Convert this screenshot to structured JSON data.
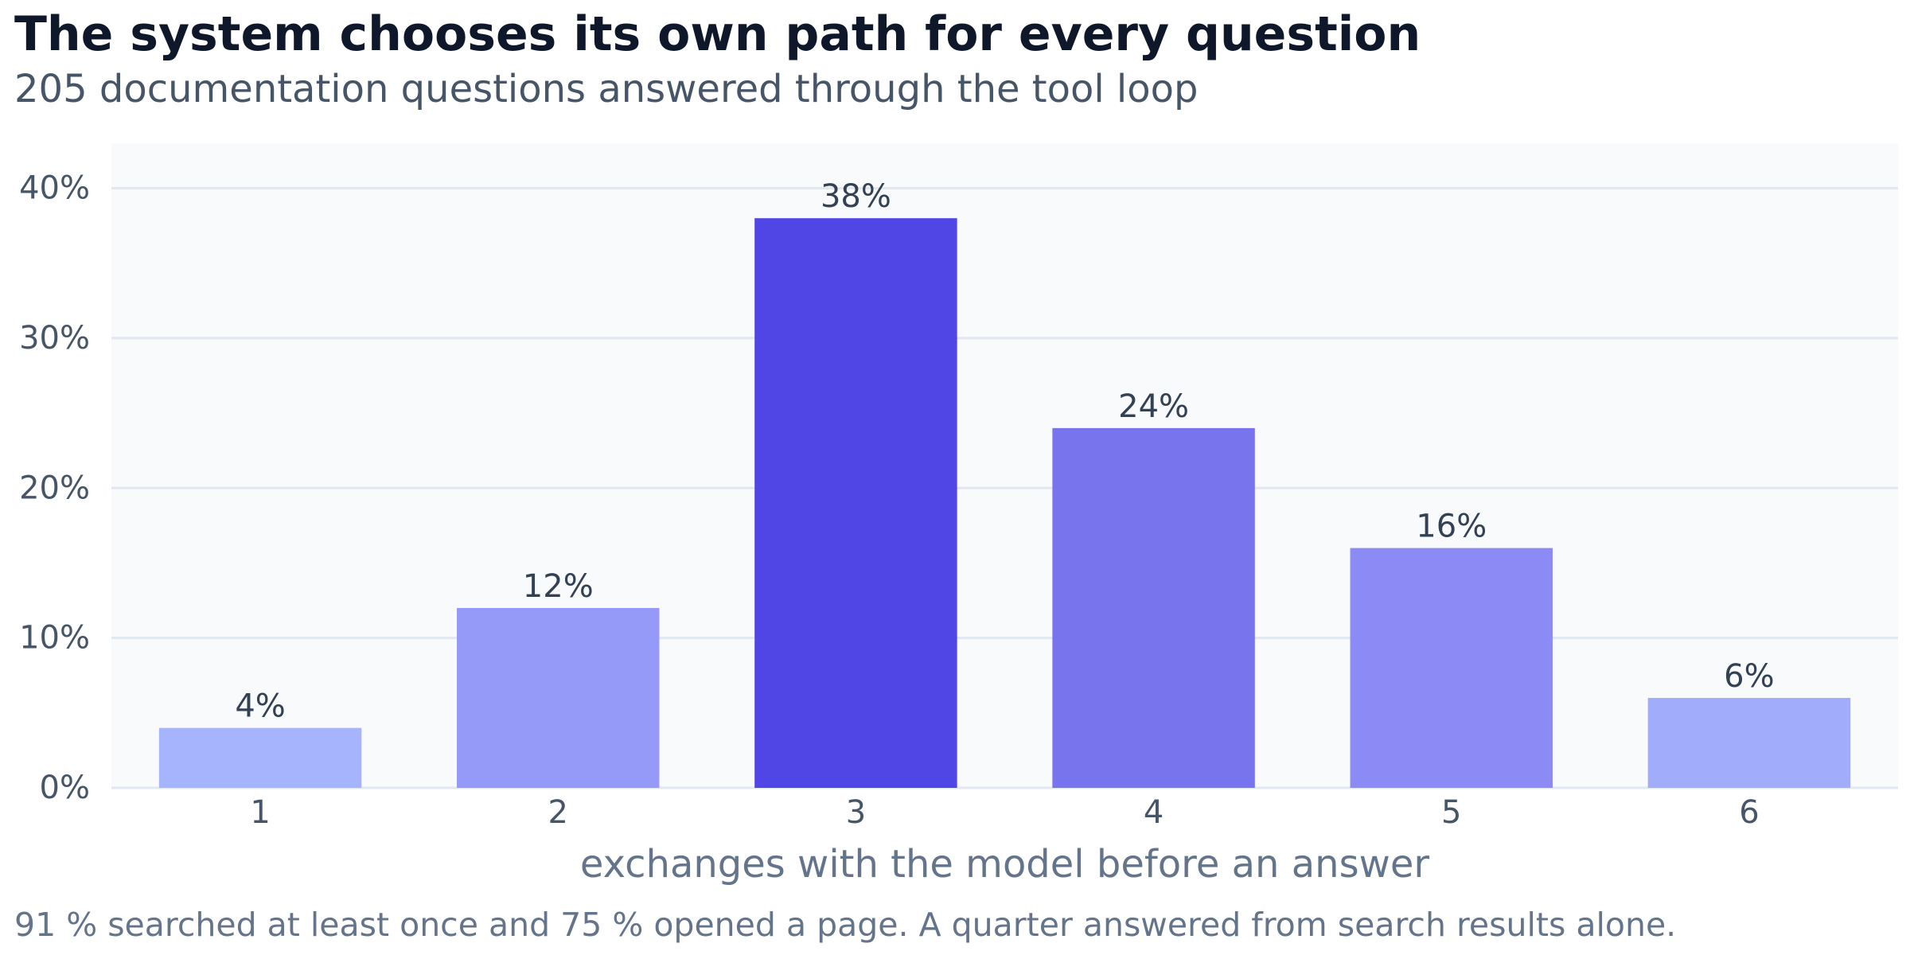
{
  "title": "The system chooses its own path for every question",
  "subtitle": "205 documentation questions answered through the tool loop",
  "footnote": "91 % searched at least once and 75 % opened a page. A quarter answered from search results alone.",
  "colors": {
    "plot_background": "#f8fafc",
    "gridline": "#e2e8f0",
    "tick_text": "#475569",
    "data_label_text": "#334155",
    "xlabel_text": "#64748b",
    "bar_colors": [
      "#a5b4fc",
      "#9599f7",
      "#4f46e5",
      "#7874ee",
      "#8c8af4",
      "#a1adfb"
    ]
  },
  "chart_data": {
    "type": "bar",
    "categories": [
      "1",
      "2",
      "3",
      "4",
      "5",
      "6"
    ],
    "values": [
      4,
      12,
      38,
      24,
      16,
      6
    ],
    "value_labels": [
      "4%",
      "12%",
      "38%",
      "24%",
      "16%",
      "6%"
    ],
    "xlabel": "exchanges with the model before an answer",
    "ylabel": "",
    "ylim": [
      0,
      43
    ],
    "yticks": [
      0,
      10,
      20,
      30,
      40
    ],
    "ytick_labels": [
      "0%",
      "10%",
      "20%",
      "30%",
      "40%"
    ],
    "grid": true,
    "legend": "none"
  }
}
